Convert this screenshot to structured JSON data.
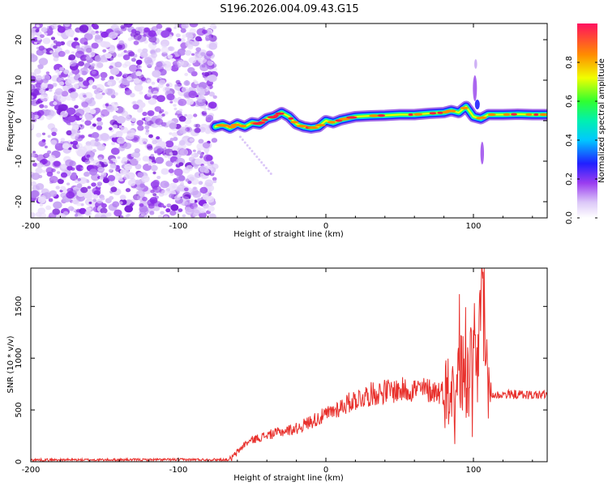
{
  "title": "S196.2026.004.09.43.G15",
  "chart_data": [
    {
      "type": "heatmap",
      "xlabel": "Height of straight line (km)",
      "ylabel": "Frequency (Hz)",
      "xlim": [
        -200,
        150
      ],
      "ylim": [
        -24,
        24
      ],
      "xticks": [
        -200,
        -100,
        0,
        100
      ],
      "yticks": [
        -20,
        -10,
        0,
        10,
        20
      ],
      "noise_region": {
        "x_from": -200,
        "x_to": -75,
        "y_from": -24,
        "y_to": 24
      },
      "ridge": {
        "x": [
          -75,
          -70,
          -65,
          -60,
          -55,
          -50,
          -45,
          -40,
          -35,
          -30,
          -25,
          -20,
          -15,
          -10,
          -5,
          0,
          5,
          10,
          20,
          30,
          40,
          50,
          60,
          70,
          80,
          85,
          90,
          95,
          100,
          105,
          110,
          120,
          130,
          140,
          150
        ],
        "freq_hz": [
          -1.5,
          -1.0,
          -1.8,
          -0.8,
          -1.5,
          -0.5,
          -0.8,
          0.5,
          1.0,
          2.0,
          1.0,
          -0.8,
          -1.5,
          -1.8,
          -1.5,
          0.0,
          -0.5,
          0.2,
          1.0,
          1.2,
          1.3,
          1.5,
          1.5,
          1.8,
          2.0,
          2.5,
          2.0,
          3.5,
          1.0,
          0.5,
          1.5,
          1.5,
          1.6,
          1.5,
          1.5
        ]
      },
      "colorbar": {
        "label": "Normalized spectral amplitude",
        "range": [
          0,
          1
        ],
        "ticks": [
          "0.0",
          "0.2",
          "0.4",
          "0.6",
          "0.8"
        ]
      }
    },
    {
      "type": "line",
      "xlabel": "Height of straight line (km)",
      "ylabel": "SNR (10 * v/v)",
      "xlim": [
        -200,
        150
      ],
      "ylim": [
        0,
        1870
      ],
      "xticks": [
        -200,
        -100,
        0,
        100
      ],
      "yticks": [
        0,
        500,
        1000,
        1500
      ],
      "series": [
        {
          "name": "SNR",
          "color": "#e8302c",
          "x": [
            -200,
            -150,
            -100,
            -65,
            -62,
            -55,
            -50,
            -40,
            -30,
            -20,
            -10,
            0,
            10,
            20,
            30,
            40,
            50,
            60,
            70,
            80,
            85,
            88,
            90,
            92,
            95,
            97,
            100,
            102,
            104,
            106,
            108,
            110,
            115,
            120,
            130,
            140,
            150
          ],
          "y": [
            18,
            18,
            20,
            20,
            60,
            170,
            210,
            255,
            290,
            320,
            390,
            450,
            530,
            600,
            650,
            680,
            690,
            700,
            690,
            670,
            700,
            780,
            900,
            850,
            800,
            780,
            1100,
            760,
            1300,
            1870,
            900,
            650,
            640,
            650,
            650,
            645,
            650
          ]
        }
      ]
    }
  ]
}
